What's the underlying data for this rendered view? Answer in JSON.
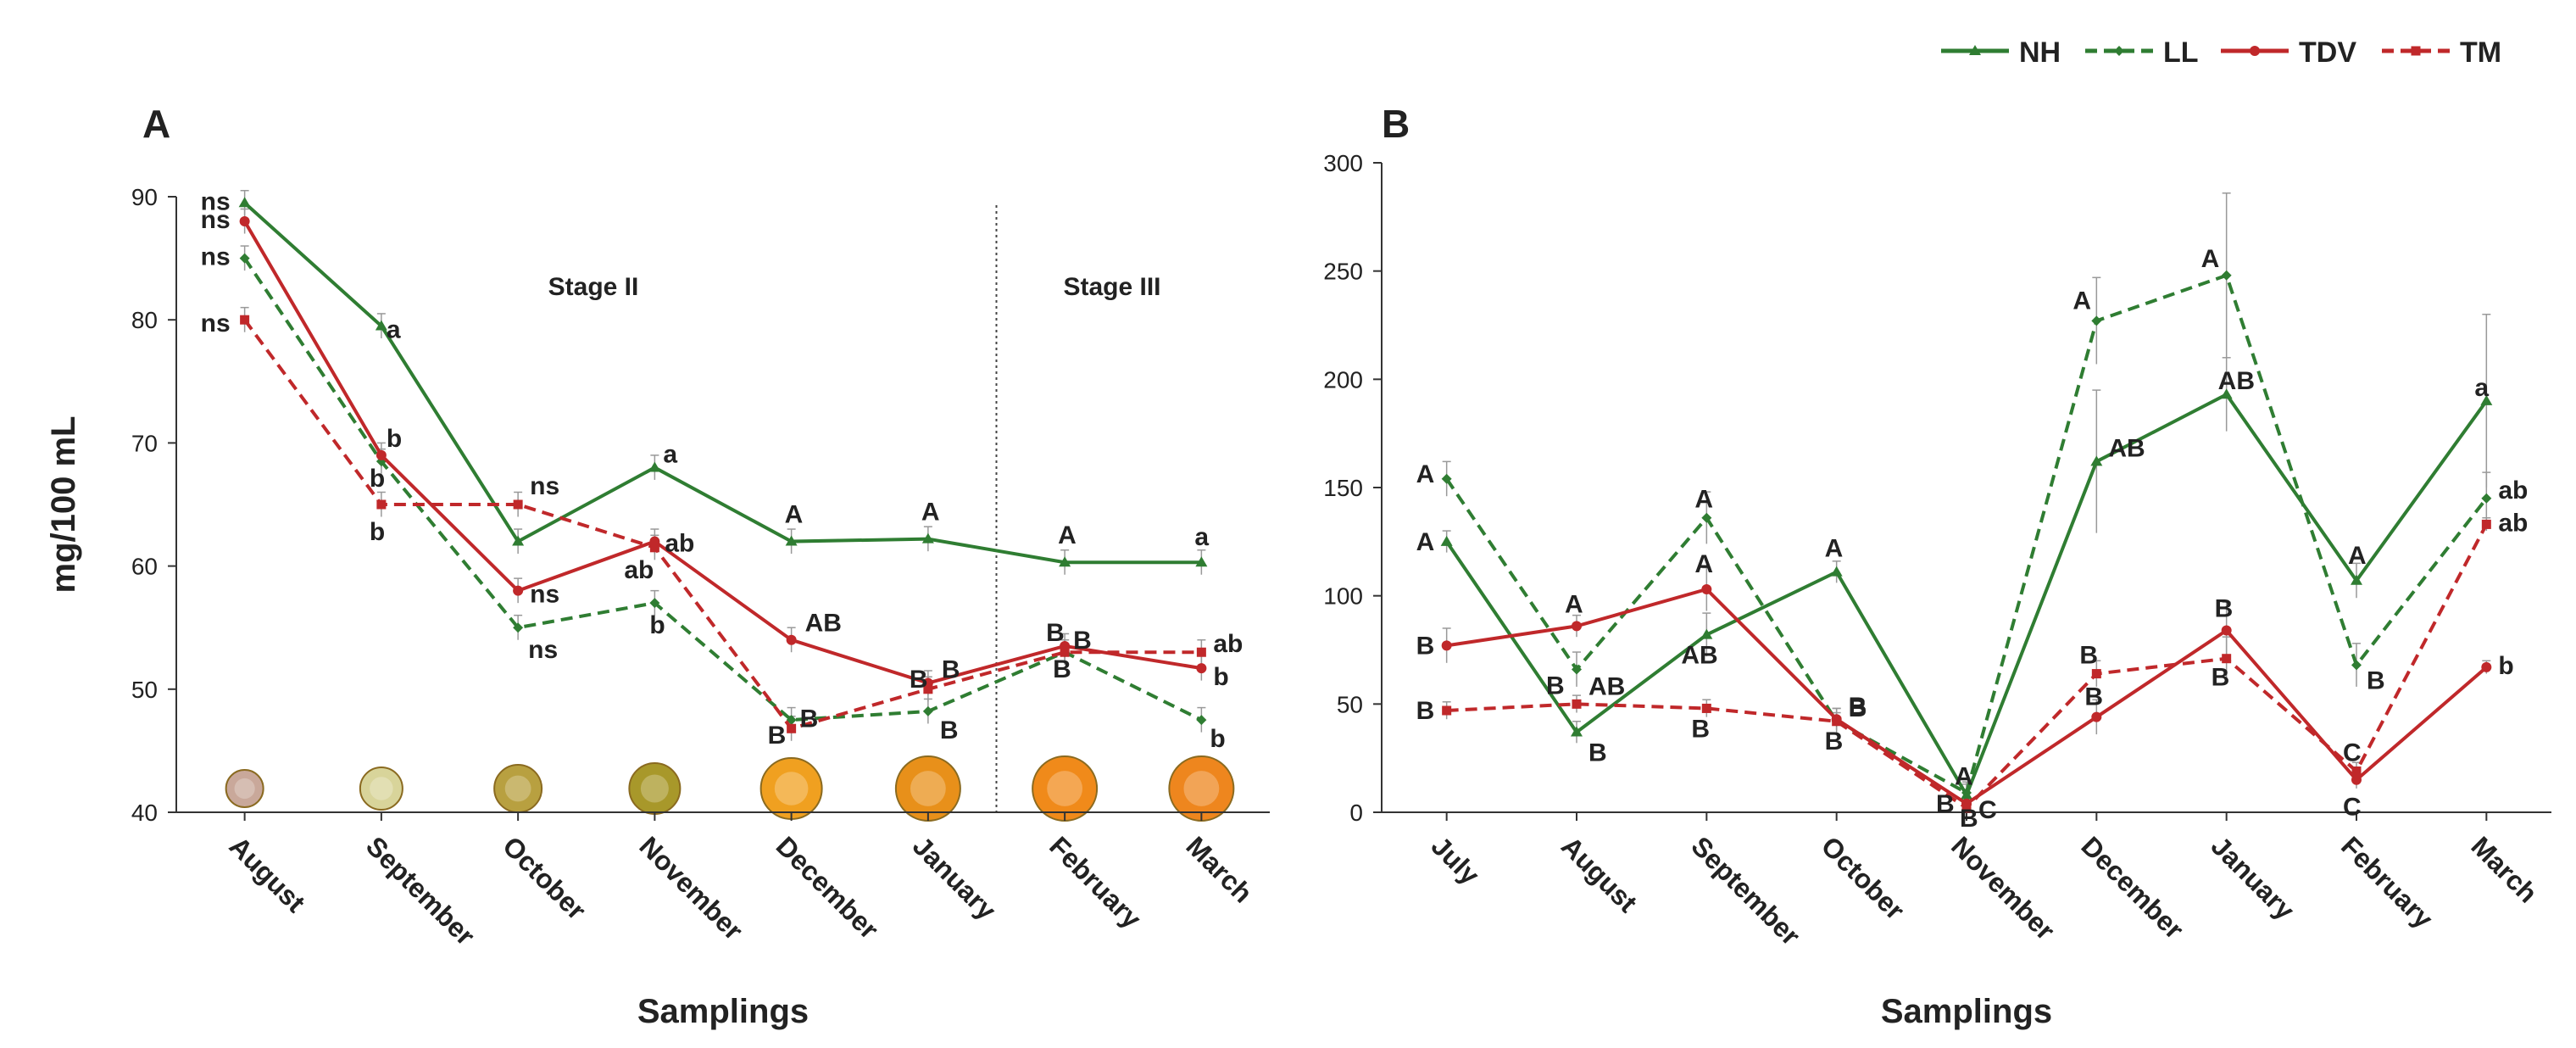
{
  "legend": {
    "items": [
      {
        "name": "NH",
        "color": "#2f7d32",
        "dash": false,
        "marker": "triangle"
      },
      {
        "name": "LL",
        "color": "#2f7d32",
        "dash": true,
        "marker": "diamond"
      },
      {
        "name": "TDV",
        "color": "#c0282a",
        "dash": false,
        "marker": "circle"
      },
      {
        "name": "TM",
        "color": "#c0282a",
        "dash": true,
        "marker": "square"
      }
    ]
  },
  "chart_data": [
    {
      "panel": "A",
      "type": "line",
      "ylabel": "mg/100 mL",
      "xlabel": "Samplings",
      "ylim": [
        40,
        90
      ],
      "yticks": [
        40,
        50,
        60,
        70,
        80,
        90
      ],
      "categories": [
        "August",
        "September",
        "October",
        "November",
        "December",
        "January",
        "February",
        "March"
      ],
      "stage_labels": [
        "Stage II",
        "Stage III"
      ],
      "series": [
        {
          "name": "NH",
          "values": [
            89.5,
            79.5,
            62,
            68,
            62,
            62.2,
            60.3,
            60.3
          ],
          "errors": [
            1.0,
            1.0,
            1.0,
            1.0,
            1.0,
            1.0,
            1.0,
            1.0
          ],
          "labels": [
            "ns",
            "a",
            "",
            "a",
            "A",
            "A",
            "A",
            "a"
          ]
        },
        {
          "name": "LL",
          "values": [
            85,
            68.5,
            55,
            57,
            47.5,
            48.2,
            53,
            47.5
          ],
          "errors": [
            1.0,
            1.0,
            1.0,
            1.0,
            1.0,
            1.0,
            1.0,
            1.0
          ],
          "labels": [
            "ns",
            "b",
            "ns",
            "b",
            "B",
            "B",
            "B",
            "b"
          ]
        },
        {
          "name": "TDV",
          "values": [
            88,
            69,
            58,
            62,
            54,
            50.5,
            53.5,
            51.7
          ],
          "errors": [
            1.0,
            1.0,
            1.0,
            1.0,
            1.0,
            1.0,
            1.0,
            1.0
          ],
          "labels": [
            "ns",
            "b",
            "ns",
            "ab",
            "AB",
            "B",
            "B",
            "b"
          ]
        },
        {
          "name": "TM",
          "values": [
            80,
            65,
            65,
            61.5,
            46.8,
            50,
            53,
            53
          ],
          "errors": [
            1.0,
            1.0,
            1.0,
            1.0,
            1.0,
            1.0,
            1.0,
            1.0
          ],
          "labels": [
            "ns",
            "b",
            "ns",
            "ab",
            "B",
            "B",
            "B",
            "ab"
          ]
        }
      ]
    },
    {
      "panel": "B",
      "type": "line",
      "ylabel": "",
      "xlabel": "Samplings",
      "ylim": [
        0,
        300
      ],
      "yticks": [
        0,
        50,
        100,
        150,
        200,
        250,
        300
      ],
      "categories": [
        "July",
        "August",
        "September",
        "October",
        "November",
        "December",
        "January",
        "February",
        "March"
      ],
      "series": [
        {
          "name": "NH",
          "values": [
            125,
            37,
            82,
            111,
            8,
            162,
            193,
            107,
            190
          ],
          "errors": [
            5,
            5,
            10,
            5,
            5,
            33,
            17,
            8,
            40
          ],
          "labels": [
            "A",
            "B",
            "AB",
            "A",
            "A",
            "AB",
            "AB",
            "A",
            "a"
          ]
        },
        {
          "name": "LL",
          "values": [
            154,
            66,
            136,
            42,
            9,
            227,
            248,
            68,
            145
          ],
          "errors": [
            8,
            8,
            12,
            6,
            5,
            20,
            38,
            10,
            12
          ],
          "labels": [
            "A",
            "AB",
            "A",
            "B",
            "C",
            "A",
            "A",
            "B",
            "ab"
          ]
        },
        {
          "name": "TDV",
          "values": [
            77,
            86,
            103,
            43,
            4,
            44,
            84,
            15,
            67
          ],
          "errors": [
            8,
            5,
            10,
            5,
            3,
            8,
            13,
            4,
            3
          ],
          "labels": [
            "B",
            "A",
            "A",
            "B",
            "B",
            "B",
            "B",
            "C",
            "b"
          ]
        },
        {
          "name": "TM",
          "values": [
            47,
            50,
            48,
            42,
            2,
            64,
            71,
            19,
            133
          ],
          "errors": [
            4,
            4,
            4,
            4,
            2,
            6,
            10,
            4,
            3
          ],
          "labels": [
            "B",
            "B",
            "B",
            "B",
            "B",
            "B",
            "B",
            "C",
            "ab"
          ]
        }
      ]
    }
  ]
}
